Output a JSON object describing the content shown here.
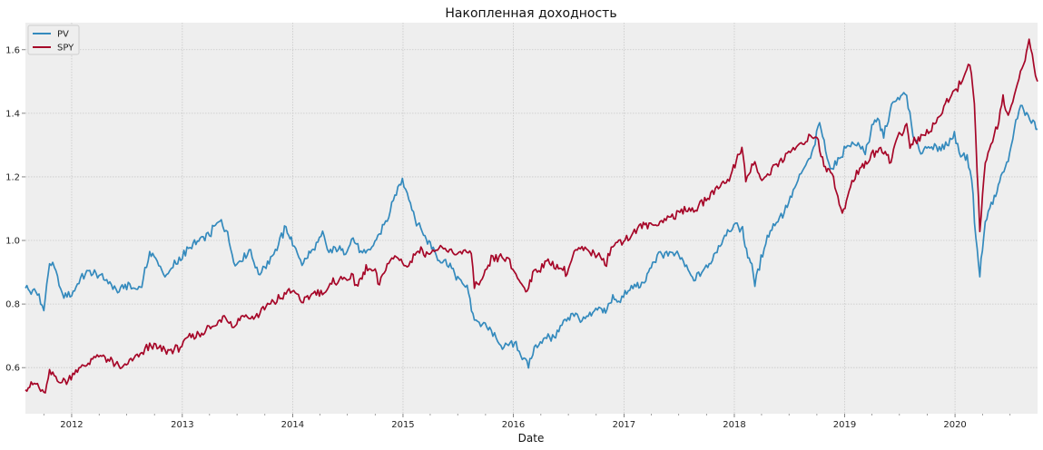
{
  "chart_data": {
    "type": "line",
    "title": "Накопленная доходность",
    "xlabel": "Date",
    "ylabel": "",
    "xlim": [
      "2011-08-01",
      "2020-09-30"
    ],
    "ylim": [
      0.455,
      1.685
    ],
    "x_ticks": [
      "2012",
      "2013",
      "2014",
      "2015",
      "2016",
      "2017",
      "2018",
      "2019",
      "2020"
    ],
    "y_ticks": [
      "0.6",
      "0.8",
      "1.0",
      "1.2",
      "1.4",
      "1.6"
    ],
    "grid": true,
    "legend_position": "top-left",
    "colors": {
      "PV": "#348abd",
      "SPY": "#a60628",
      "background": "#eeeeee",
      "grid": "#c8c8c8"
    },
    "series": [
      {
        "name": "PV",
        "points": [
          [
            "2011-08-01",
            0.85
          ],
          [
            "2011-08-20",
            0.84
          ],
          [
            "2011-09-15",
            0.83
          ],
          [
            "2011-10-01",
            0.78
          ],
          [
            "2011-10-20",
            0.93
          ],
          [
            "2011-11-10",
            0.9
          ],
          [
            "2011-12-01",
            0.83
          ],
          [
            "2012-01-01",
            0.83
          ],
          [
            "2012-01-20",
            0.86
          ],
          [
            "2012-02-10",
            0.89
          ],
          [
            "2012-03-01",
            0.9
          ],
          [
            "2012-04-01",
            0.89
          ],
          [
            "2012-05-01",
            0.87
          ],
          [
            "2012-06-01",
            0.84
          ],
          [
            "2012-07-01",
            0.86
          ],
          [
            "2012-08-01",
            0.85
          ],
          [
            "2012-08-20",
            0.86
          ],
          [
            "2012-09-15",
            0.96
          ],
          [
            "2012-10-15",
            0.93
          ],
          [
            "2012-11-10",
            0.88
          ],
          [
            "2012-12-01",
            0.92
          ],
          [
            "2013-01-01",
            0.95
          ],
          [
            "2013-02-01",
            0.98
          ],
          [
            "2013-03-01",
            1.0
          ],
          [
            "2013-04-01",
            1.02
          ],
          [
            "2013-05-10",
            1.07
          ],
          [
            "2013-06-05",
            1.0
          ],
          [
            "2013-06-25",
            0.92
          ],
          [
            "2013-07-20",
            0.95
          ],
          [
            "2013-08-15",
            0.97
          ],
          [
            "2013-09-10",
            0.89
          ],
          [
            "2013-10-10",
            0.93
          ],
          [
            "2013-11-10",
            0.98
          ],
          [
            "2013-12-10",
            1.04
          ],
          [
            "2014-01-01",
            0.99
          ],
          [
            "2014-02-01",
            0.93
          ],
          [
            "2014-03-10",
            0.97
          ],
          [
            "2014-04-10",
            1.02
          ],
          [
            "2014-05-01",
            0.96
          ],
          [
            "2014-06-01",
            0.98
          ],
          [
            "2014-06-20",
            0.96
          ],
          [
            "2014-07-20",
            1.01
          ],
          [
            "2014-08-20",
            0.95
          ],
          [
            "2014-09-20",
            0.98
          ],
          [
            "2014-10-15",
            1.02
          ],
          [
            "2014-11-15",
            1.08
          ],
          [
            "2014-12-10",
            1.15
          ],
          [
            "2014-12-30",
            1.19
          ],
          [
            "2015-01-15",
            1.15
          ],
          [
            "2015-02-10",
            1.07
          ],
          [
            "2015-03-10",
            1.02
          ],
          [
            "2015-04-01",
            0.99
          ],
          [
            "2015-05-01",
            0.94
          ],
          [
            "2015-06-01",
            0.93
          ],
          [
            "2015-07-01",
            0.88
          ],
          [
            "2015-08-01",
            0.85
          ],
          [
            "2015-08-25",
            0.75
          ],
          [
            "2015-09-15",
            0.74
          ],
          [
            "2015-10-15",
            0.72
          ],
          [
            "2015-11-05",
            0.69
          ],
          [
            "2015-12-01",
            0.66
          ],
          [
            "2016-01-10",
            0.68
          ],
          [
            "2016-02-05",
            0.62
          ],
          [
            "2016-02-20",
            0.61
          ],
          [
            "2016-03-15",
            0.67
          ],
          [
            "2016-04-15",
            0.69
          ],
          [
            "2016-05-20",
            0.7
          ],
          [
            "2016-06-15",
            0.74
          ],
          [
            "2016-07-15",
            0.77
          ],
          [
            "2016-08-15",
            0.75
          ],
          [
            "2016-09-10",
            0.76
          ],
          [
            "2016-10-10",
            0.79
          ],
          [
            "2016-11-01",
            0.78
          ],
          [
            "2016-11-25",
            0.82
          ],
          [
            "2016-12-20",
            0.81
          ],
          [
            "2017-01-15",
            0.84
          ],
          [
            "2017-02-10",
            0.86
          ],
          [
            "2017-03-05",
            0.86
          ],
          [
            "2017-04-01",
            0.92
          ],
          [
            "2017-05-01",
            0.96
          ],
          [
            "2017-06-01",
            0.96
          ],
          [
            "2017-07-01",
            0.95
          ],
          [
            "2017-08-01",
            0.91
          ],
          [
            "2017-08-20",
            0.87
          ],
          [
            "2017-09-10",
            0.9
          ],
          [
            "2017-10-10",
            0.92
          ],
          [
            "2017-11-10",
            0.98
          ],
          [
            "2017-12-10",
            1.03
          ],
          [
            "2018-01-10",
            1.05
          ],
          [
            "2018-01-28",
            1.03
          ],
          [
            "2018-02-10",
            0.97
          ],
          [
            "2018-02-28",
            0.92
          ],
          [
            "2018-03-10",
            0.87
          ],
          [
            "2018-03-25",
            0.92
          ],
          [
            "2018-04-15",
            1.0
          ],
          [
            "2018-05-15",
            1.05
          ],
          [
            "2018-06-15",
            1.09
          ],
          [
            "2018-07-15",
            1.15
          ],
          [
            "2018-08-15",
            1.22
          ],
          [
            "2018-09-15",
            1.27
          ],
          [
            "2018-10-10",
            1.37
          ],
          [
            "2018-10-30",
            1.28
          ],
          [
            "2018-11-20",
            1.22
          ],
          [
            "2018-12-15",
            1.26
          ],
          [
            "2019-01-10",
            1.3
          ],
          [
            "2019-02-10",
            1.3
          ],
          [
            "2019-03-10",
            1.28
          ],
          [
            "2019-04-01",
            1.35
          ],
          [
            "2019-04-20",
            1.38
          ],
          [
            "2019-05-10",
            1.33
          ],
          [
            "2019-06-05",
            1.42
          ],
          [
            "2019-07-01",
            1.45
          ],
          [
            "2019-07-25",
            1.46
          ],
          [
            "2019-08-15",
            1.33
          ],
          [
            "2019-09-10",
            1.28
          ],
          [
            "2019-10-10",
            1.3
          ],
          [
            "2019-11-05",
            1.28
          ],
          [
            "2019-12-01",
            1.3
          ],
          [
            "2019-12-30",
            1.33
          ],
          [
            "2020-01-20",
            1.27
          ],
          [
            "2020-02-10",
            1.26
          ],
          [
            "2020-02-25",
            1.2
          ],
          [
            "2020-03-10",
            1.0
          ],
          [
            "2020-03-23",
            0.89
          ],
          [
            "2020-04-05",
            1.02
          ],
          [
            "2020-04-20",
            1.1
          ],
          [
            "2020-05-10",
            1.13
          ],
          [
            "2020-06-01",
            1.2
          ],
          [
            "2020-06-25",
            1.25
          ],
          [
            "2020-07-15",
            1.35
          ],
          [
            "2020-08-05",
            1.42
          ],
          [
            "2020-08-25",
            1.4
          ],
          [
            "2020-09-10",
            1.38
          ],
          [
            "2020-09-30",
            1.35
          ]
        ]
      },
      {
        "name": "SPY",
        "points": [
          [
            "2011-08-01",
            0.53
          ],
          [
            "2011-08-20",
            0.54
          ],
          [
            "2011-09-10",
            0.55
          ],
          [
            "2011-10-01",
            0.51
          ],
          [
            "2011-10-20",
            0.58
          ],
          [
            "2011-11-20",
            0.56
          ],
          [
            "2011-12-20",
            0.56
          ],
          [
            "2012-01-15",
            0.59
          ],
          [
            "2012-02-15",
            0.61
          ],
          [
            "2012-03-15",
            0.63
          ],
          [
            "2012-04-15",
            0.64
          ],
          [
            "2012-05-20",
            0.61
          ],
          [
            "2012-06-15",
            0.6
          ],
          [
            "2012-07-15",
            0.62
          ],
          [
            "2012-08-15",
            0.64
          ],
          [
            "2012-09-15",
            0.67
          ],
          [
            "2012-10-15",
            0.66
          ],
          [
            "2012-11-15",
            0.65
          ],
          [
            "2012-12-20",
            0.66
          ],
          [
            "2013-01-20",
            0.69
          ],
          [
            "2013-02-20",
            0.7
          ],
          [
            "2013-03-20",
            0.72
          ],
          [
            "2013-04-20",
            0.73
          ],
          [
            "2013-05-20",
            0.77
          ],
          [
            "2013-06-20",
            0.73
          ],
          [
            "2013-07-20",
            0.77
          ],
          [
            "2013-08-20",
            0.75
          ],
          [
            "2013-09-20",
            0.78
          ],
          [
            "2013-10-20",
            0.8
          ],
          [
            "2013-11-20",
            0.82
          ],
          [
            "2013-12-20",
            0.84
          ],
          [
            "2014-01-20",
            0.83
          ],
          [
            "2014-02-05",
            0.8
          ],
          [
            "2014-03-10",
            0.84
          ],
          [
            "2014-04-15",
            0.84
          ],
          [
            "2014-05-20",
            0.87
          ],
          [
            "2014-06-20",
            0.88
          ],
          [
            "2014-07-20",
            0.88
          ],
          [
            "2014-08-05",
            0.86
          ],
          [
            "2014-09-01",
            0.91
          ],
          [
            "2014-10-01",
            0.9
          ],
          [
            "2014-10-15",
            0.86
          ],
          [
            "2014-11-10",
            0.93
          ],
          [
            "2014-12-10",
            0.95
          ],
          [
            "2015-01-15",
            0.92
          ],
          [
            "2015-02-20",
            0.97
          ],
          [
            "2015-03-20",
            0.96
          ],
          [
            "2015-04-20",
            0.97
          ],
          [
            "2015-05-20",
            0.97
          ],
          [
            "2015-06-20",
            0.96
          ],
          [
            "2015-07-20",
            0.97
          ],
          [
            "2015-08-15",
            0.95
          ],
          [
            "2015-08-25",
            0.86
          ],
          [
            "2015-09-20",
            0.87
          ],
          [
            "2015-10-20",
            0.94
          ],
          [
            "2015-11-20",
            0.95
          ],
          [
            "2015-12-20",
            0.93
          ],
          [
            "2016-01-15",
            0.88
          ],
          [
            "2016-02-11",
            0.84
          ],
          [
            "2016-03-10",
            0.9
          ],
          [
            "2016-04-15",
            0.93
          ],
          [
            "2016-05-20",
            0.92
          ],
          [
            "2016-06-27",
            0.9
          ],
          [
            "2016-07-20",
            0.96
          ],
          [
            "2016-08-20",
            0.97
          ],
          [
            "2016-09-20",
            0.96
          ],
          [
            "2016-10-20",
            0.95
          ],
          [
            "2016-11-04",
            0.93
          ],
          [
            "2016-11-20",
            0.98
          ],
          [
            "2016-12-20",
            1.0
          ],
          [
            "2017-01-20",
            1.01
          ],
          [
            "2017-02-20",
            1.04
          ],
          [
            "2017-03-20",
            1.05
          ],
          [
            "2017-04-20",
            1.05
          ],
          [
            "2017-05-20",
            1.07
          ],
          [
            "2017-06-20",
            1.08
          ],
          [
            "2017-07-20",
            1.1
          ],
          [
            "2017-08-20",
            1.09
          ],
          [
            "2017-09-20",
            1.12
          ],
          [
            "2017-10-20",
            1.15
          ],
          [
            "2017-11-20",
            1.18
          ],
          [
            "2017-12-20",
            1.2
          ],
          [
            "2018-01-26",
            1.3
          ],
          [
            "2018-02-08",
            1.19
          ],
          [
            "2018-03-10",
            1.25
          ],
          [
            "2018-04-02",
            1.18
          ],
          [
            "2018-05-10",
            1.23
          ],
          [
            "2018-06-15",
            1.26
          ],
          [
            "2018-07-20",
            1.29
          ],
          [
            "2018-08-20",
            1.31
          ],
          [
            "2018-09-20",
            1.33
          ],
          [
            "2018-10-01",
            1.33
          ],
          [
            "2018-10-29",
            1.22
          ],
          [
            "2018-11-20",
            1.22
          ],
          [
            "2018-12-24",
            1.08
          ],
          [
            "2019-01-20",
            1.17
          ],
          [
            "2019-02-20",
            1.23
          ],
          [
            "2019-03-20",
            1.25
          ],
          [
            "2019-04-20",
            1.29
          ],
          [
            "2019-05-20",
            1.28
          ],
          [
            "2019-06-03",
            1.24
          ],
          [
            "2019-06-20",
            1.32
          ],
          [
            "2019-07-25",
            1.36
          ],
          [
            "2019-08-05",
            1.3
          ],
          [
            "2019-09-20",
            1.33
          ],
          [
            "2019-10-20",
            1.36
          ],
          [
            "2019-11-20",
            1.41
          ],
          [
            "2019-12-20",
            1.45
          ],
          [
            "2020-01-20",
            1.5
          ],
          [
            "2020-02-19",
            1.55
          ],
          [
            "2020-03-05",
            1.43
          ],
          [
            "2020-03-23",
            1.03
          ],
          [
            "2020-04-10",
            1.24
          ],
          [
            "2020-04-29",
            1.3
          ],
          [
            "2020-05-20",
            1.36
          ],
          [
            "2020-06-08",
            1.45
          ],
          [
            "2020-06-25",
            1.38
          ],
          [
            "2020-07-20",
            1.48
          ],
          [
            "2020-08-20",
            1.56
          ],
          [
            "2020-09-02",
            1.64
          ],
          [
            "2020-09-23",
            1.52
          ],
          [
            "2020-09-30",
            1.5
          ]
        ]
      }
    ]
  }
}
